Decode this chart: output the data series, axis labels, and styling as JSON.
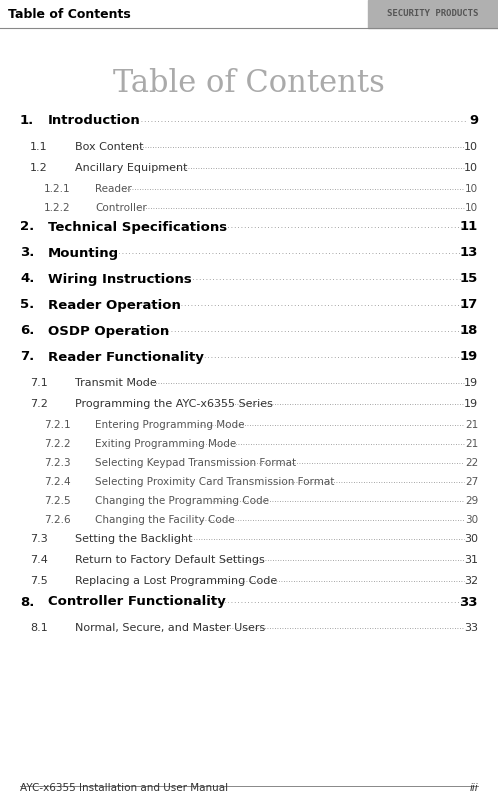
{
  "header_text": "Table of Contents",
  "header_bg": "#c8c8c8",
  "security_text": "SECURITY PRODUCTS",
  "title": "Table of Contents",
  "title_color": "#aaaaaa",
  "footer_left": "AYC-x6355 Installation and User Manual",
  "footer_right": "iii",
  "bg_color": "#ffffff",
  "entries": [
    {
      "num": "1.",
      "title": "Introduction",
      "dots": true,
      "page": "9",
      "level": 1,
      "bold": true
    },
    {
      "num": "1.1",
      "title": "Box Content",
      "dots": true,
      "page": "10",
      "level": 2,
      "bold": false
    },
    {
      "num": "1.2",
      "title": "Ancillary Equipment",
      "dots": true,
      "page": "10",
      "level": 2,
      "bold": false
    },
    {
      "num": "1.2.1",
      "title": "Reader",
      "dots": true,
      "page": "10",
      "level": 3,
      "bold": false
    },
    {
      "num": "1.2.2",
      "title": "Controller",
      "dots": true,
      "page": "10",
      "level": 3,
      "bold": false
    },
    {
      "num": "2.",
      "title": "Technical Specifications",
      "dots": true,
      "page": "11",
      "level": 1,
      "bold": true
    },
    {
      "num": "3.",
      "title": "Mounting",
      "dots": true,
      "page": "13",
      "level": 1,
      "bold": true
    },
    {
      "num": "4.",
      "title": "Wiring Instructions",
      "dots": true,
      "page": "15",
      "level": 1,
      "bold": true
    },
    {
      "num": "5.",
      "title": "Reader Operation",
      "dots": true,
      "page": "17",
      "level": 1,
      "bold": true
    },
    {
      "num": "6.",
      "title": "OSDP Operation",
      "dots": true,
      "page": "18",
      "level": 1,
      "bold": true
    },
    {
      "num": "7.",
      "title": "Reader Functionality",
      "dots": true,
      "page": "19",
      "level": 1,
      "bold": true
    },
    {
      "num": "7.1",
      "title": "Transmit Mode",
      "dots": true,
      "page": "19",
      "level": 2,
      "bold": false
    },
    {
      "num": "7.2",
      "title": "Programming the AYC-x6355 Series",
      "dots": true,
      "page": "19",
      "level": 2,
      "bold": false
    },
    {
      "num": "7.2.1",
      "title": "Entering Programming Mode",
      "dots": true,
      "page": "21",
      "level": 3,
      "bold": false
    },
    {
      "num": "7.2.2",
      "title": "Exiting Programming Mode",
      "dots": true,
      "page": "21",
      "level": 3,
      "bold": false
    },
    {
      "num": "7.2.3",
      "title": "Selecting Keypad Transmission Format",
      "dots": true,
      "page": "22",
      "level": 3,
      "bold": false
    },
    {
      "num": "7.2.4",
      "title": "Selecting Proximity Card Transmission Format",
      "dots": true,
      "page": "27",
      "level": 3,
      "bold": false
    },
    {
      "num": "7.2.5",
      "title": "Changing the Programming Code",
      "dots": true,
      "page": "29",
      "level": 3,
      "bold": false
    },
    {
      "num": "7.2.6",
      "title": "Changing the Facility Code",
      "dots": true,
      "page": "30",
      "level": 3,
      "bold": false
    },
    {
      "num": "7.3",
      "title": "Setting the Backlight",
      "dots": true,
      "page": "30",
      "level": 2,
      "bold": false
    },
    {
      "num": "7.4",
      "title": "Return to Factory Default Settings",
      "dots": true,
      "page": "31",
      "level": 2,
      "bold": false
    },
    {
      "num": "7.5",
      "title": "Replacing a Lost Programming Code",
      "dots": true,
      "page": "32",
      "level": 2,
      "bold": false
    },
    {
      "num": "8.",
      "title": "Controller Functionality",
      "dots": true,
      "page": "33",
      "level": 1,
      "bold": true
    },
    {
      "num": "8.1",
      "title": "Normal, Secure, and Master Users",
      "dots": true,
      "page": "33",
      "level": 2,
      "bold": false
    }
  ]
}
